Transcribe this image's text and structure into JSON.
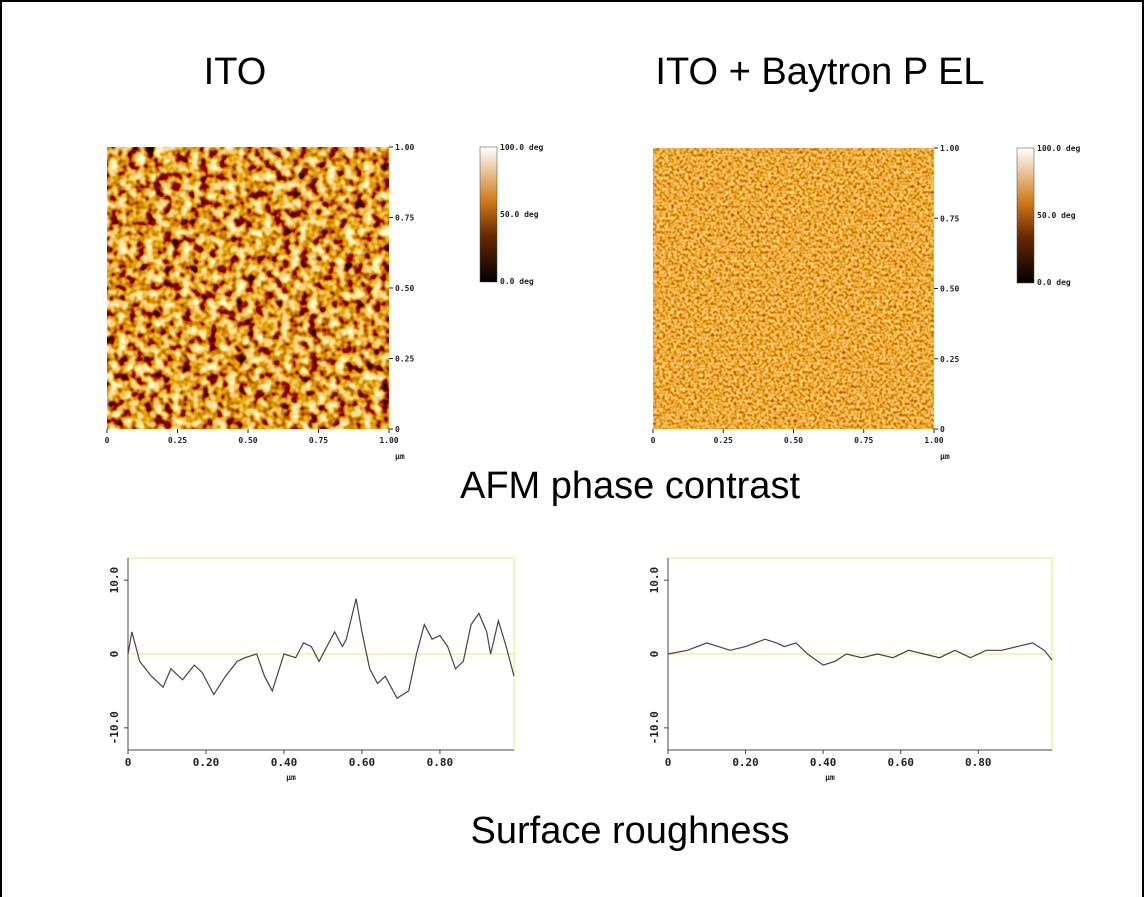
{
  "headings": [
    "ITO",
    "ITO + Baytron P EL"
  ],
  "afm_caption": "AFM phase contrast",
  "roughness_caption": "Surface roughness",
  "afm_images": [
    {
      "xlim": [
        0,
        1
      ],
      "ylim": [
        0,
        1
      ],
      "xticks": [
        0,
        {
          "value": 0.25,
          "label": "0.25"
        },
        {
          "value": 0.5,
          "label": "0.50"
        },
        {
          "value": 0.75,
          "label": "0.75"
        },
        {
          "value": 1,
          "label": "1.00"
        }
      ],
      "yticks": [
        0,
        {
          "value": 0.25,
          "label": "0.25"
        },
        {
          "value": 0.5,
          "label": "0.50"
        },
        {
          "value": 0.75,
          "label": "0.75"
        },
        {
          "value": 1,
          "label": "1.00"
        }
      ],
      "unit": "µm",
      "colorbar": [
        "100.0 deg",
        "50.0 deg",
        "0.0 deg"
      ]
    },
    {
      "xlim": [
        0,
        1
      ],
      "ylim": [
        0,
        1
      ],
      "xticks": [
        0,
        {
          "value": 0.25,
          "label": "0.25"
        },
        {
          "value": 0.5,
          "label": "0.50"
        },
        {
          "value": 0.75,
          "label": "0.75"
        },
        {
          "value": 1,
          "label": "1.00"
        }
      ],
      "yticks": [
        0,
        {
          "value": 0.25,
          "label": "0.25"
        },
        {
          "value": 0.5,
          "label": "0.50"
        },
        {
          "value": 0.75,
          "label": "0.75"
        },
        {
          "value": 1,
          "label": "1.00"
        }
      ],
      "unit": "µm",
      "colorbar": [
        "100.0 deg",
        "50.0 deg",
        "0.0 deg"
      ]
    }
  ],
  "chart_data": [
    {
      "type": "line",
      "x_label": "µm",
      "color": "#444444",
      "frame_color": "#e8e87a",
      "xlim": [
        0,
        0.99
      ],
      "ylim": [
        -13,
        13
      ],
      "xticks": [
        0,
        {
          "value": 0.2,
          "label": "0.20"
        },
        {
          "value": 0.4,
          "label": "0.40"
        },
        {
          "value": 0.6,
          "label": "0.60"
        },
        {
          "value": 0.8,
          "label": "0.80"
        }
      ],
      "yticks": [
        {
          "value": -10,
          "label": "-10.0"
        },
        0,
        {
          "value": 10,
          "label": "10.0"
        }
      ],
      "x": [
        0,
        0.01,
        0.03,
        0.06,
        0.09,
        0.11,
        0.14,
        0.17,
        0.19,
        0.22,
        0.25,
        0.28,
        0.3,
        0.33,
        0.35,
        0.37,
        0.4,
        0.43,
        0.45,
        0.47,
        0.49,
        0.53,
        0.55,
        0.56,
        0.585,
        0.6,
        0.62,
        0.64,
        0.66,
        0.69,
        0.72,
        0.74,
        0.76,
        0.78,
        0.8,
        0.82,
        0.84,
        0.86,
        0.88,
        0.9,
        0.92,
        0.93,
        0.95,
        0.97,
        0.99
      ],
      "values": [
        0,
        3,
        -1,
        -3,
        -4.5,
        -2,
        -3.5,
        -1.5,
        -2.5,
        -5.5,
        -3,
        -1,
        -0.5,
        0,
        -3,
        -5,
        0,
        -0.5,
        1.5,
        1,
        -1,
        3,
        1,
        2,
        7.5,
        3,
        -2,
        -4,
        -3,
        -6,
        -5,
        0,
        4,
        2,
        2.5,
        1,
        -2,
        -1,
        4,
        5.5,
        3,
        0,
        4.5,
        1,
        -3
      ]
    },
    {
      "type": "line",
      "x_label": "µm",
      "color": "#444444",
      "frame_color": "#e8e87a",
      "xlim": [
        0,
        0.99
      ],
      "ylim": [
        -13,
        13
      ],
      "xticks": [
        0,
        {
          "value": 0.2,
          "label": "0.20"
        },
        {
          "value": 0.4,
          "label": "0.40"
        },
        {
          "value": 0.6,
          "label": "0.60"
        },
        {
          "value": 0.8,
          "label": "0.80"
        }
      ],
      "yticks": [
        {
          "value": -10,
          "label": "-10.0"
        },
        0,
        {
          "value": 10,
          "label": "10.0"
        }
      ],
      "x": [
        0,
        0.05,
        0.1,
        0.13,
        0.16,
        0.2,
        0.25,
        0.28,
        0.3,
        0.33,
        0.36,
        0.4,
        0.43,
        0.46,
        0.5,
        0.54,
        0.58,
        0.62,
        0.66,
        0.7,
        0.74,
        0.78,
        0.82,
        0.86,
        0.9,
        0.94,
        0.97,
        0.99
      ],
      "values": [
        0,
        0.5,
        1.5,
        1,
        0.5,
        1,
        2,
        1.5,
        1,
        1.5,
        0,
        -1.5,
        -1,
        0,
        -0.5,
        0,
        -0.5,
        0.5,
        0,
        -0.5,
        0.5,
        -0.5,
        0.5,
        0.5,
        1,
        1.5,
        0.5,
        -0.8
      ]
    }
  ]
}
